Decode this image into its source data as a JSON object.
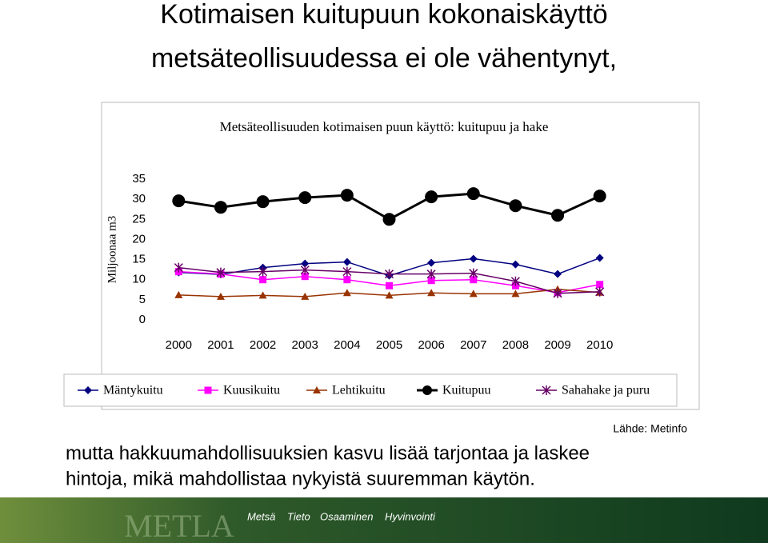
{
  "title_lines": [
    "Kotimaisen kuitupuun kokonaiskäyttö",
    "metsäteollisuudessa ei ole vähentynyt,"
  ],
  "chart_data": {
    "type": "line",
    "title": "Metsäteollisuuden kotimaisen puun käyttö: kuitupuu ja hake",
    "y_label": "Miljoonaa m3",
    "categories": [
      "2000",
      "2001",
      "2002",
      "2003",
      "2004",
      "2005",
      "2006",
      "2007",
      "2008",
      "2009",
      "2010"
    ],
    "series": [
      {
        "name": "Mäntykuitu",
        "color": "#000080",
        "marker": "diamond",
        "values": [
          11.8,
          11.3,
          13,
          14,
          14.4,
          11,
          14.2,
          15.2,
          13.8,
          11.4,
          15.4
        ]
      },
      {
        "name": "Kuusikuitu",
        "color": "#ff00ff",
        "marker": "square",
        "values": [
          12,
          11.4,
          10,
          10.8,
          10,
          8.5,
          9.8,
          10,
          8.5,
          6.8,
          8.8
        ]
      },
      {
        "name": "Lehtikuitu",
        "color": "#993300",
        "marker": "triangle",
        "values": [
          6.2,
          5.8,
          6.1,
          5.8,
          6.7,
          6.1,
          6.7,
          6.5,
          6.5,
          7.6,
          6.8
        ]
      },
      {
        "name": "Kuitupuu",
        "color": "#000000",
        "marker": "circle",
        "values": [
          29.6,
          28,
          29.4,
          30.4,
          31,
          25,
          30.6,
          31.4,
          28.4,
          26,
          30.8
        ]
      },
      {
        "name": "Sahahake ja puru",
        "color": "#660066",
        "marker": "star",
        "values": [
          13,
          11.8,
          12,
          12.4,
          12,
          11.4,
          11.4,
          11.6,
          9.6,
          6.6,
          7
        ]
      }
    ],
    "ylim": [
      0,
      35
    ],
    "yticks": [
      0,
      5,
      10,
      15,
      20,
      25,
      30,
      35
    ],
    "grid": false,
    "legend": "bottom"
  },
  "source": "Lähde: Metinfo",
  "caption_lines": [
    "mutta hakkuumahdollisuuksien kasvu lisää tarjontaa ja laskee",
    "hintoja, mikä mahdollistaa nykyistä suuremman käytön."
  ],
  "footer": {
    "logo": "METLA",
    "tagline": [
      "Metsä",
      "Tieto",
      "Osaaminen",
      "Hyvinvointi"
    ]
  }
}
